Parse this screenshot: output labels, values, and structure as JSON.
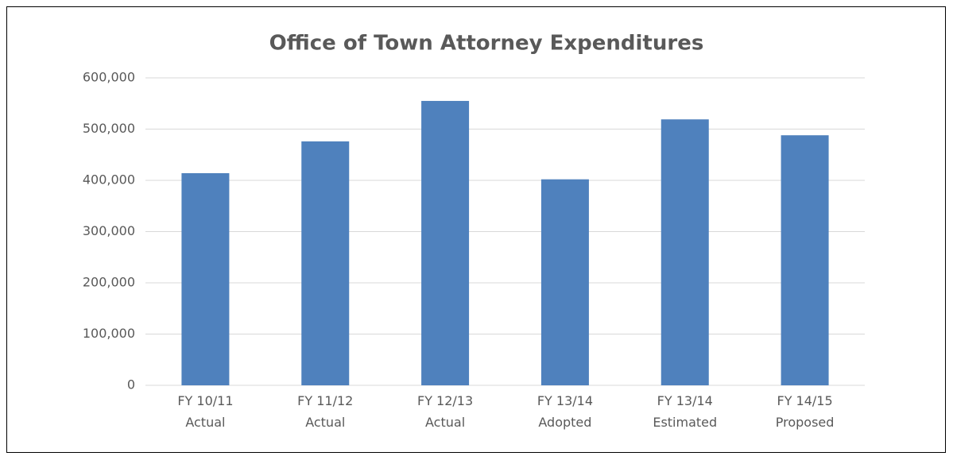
{
  "chart_data": {
    "type": "bar",
    "title": "Office of Town Attorney Expenditures",
    "categories": [
      "FY 10/11 Actual",
      "FY 11/12 Actual",
      "FY 12/13 Actual",
      "FY 13/14 Adopted",
      "FY 13/14 Estimated",
      "FY 14/15 Proposed"
    ],
    "values": [
      414000,
      476000,
      555000,
      402000,
      519000,
      488000
    ],
    "color": "#4f81bd",
    "ylim": [
      0,
      600000
    ],
    "yticks": [
      0,
      {
        "value": 100000,
        "label": "100,000"
      },
      {
        "value": 200000,
        "label": "200,000"
      },
      {
        "value": 300000,
        "label": "300,000"
      },
      {
        "value": 400000,
        "label": "400,000"
      },
      {
        "value": 500000,
        "label": "500,000"
      },
      {
        "value": 600000,
        "label": "600,000"
      }
    ],
    "grid": true
  }
}
